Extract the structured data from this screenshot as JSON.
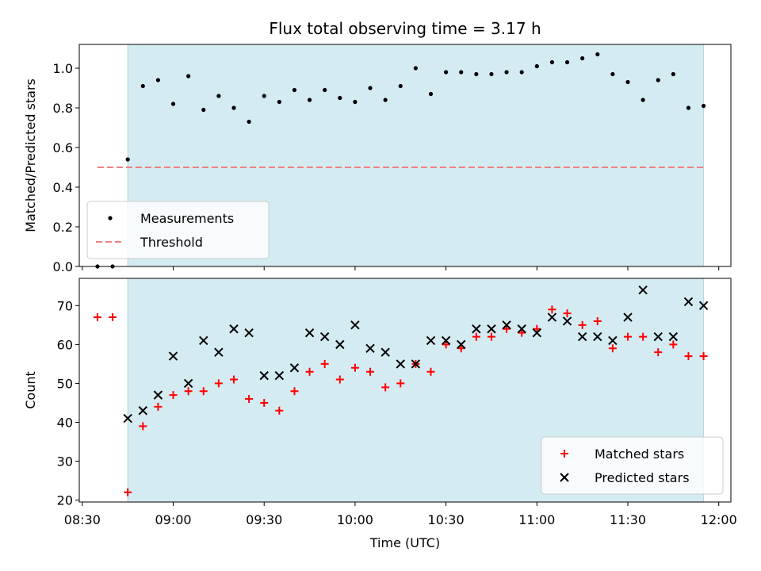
{
  "chart_data": {
    "type": "scatter",
    "title": "Flux total observing time = 3.17 h",
    "xlabel": "Time (UTC)",
    "x_tick_labels": [
      "08:30",
      "09:00",
      "09:30",
      "10:00",
      "10:30",
      "11:00",
      "11:30",
      "12:00"
    ],
    "x_ticks_min": [
      510,
      540,
      570,
      600,
      630,
      660,
      690,
      720
    ],
    "xlim_min": [
      509,
      724
    ],
    "time_unit": "minutes since 00:00 UTC",
    "observing_span_min": [
      525,
      715
    ],
    "times_min": [
      515,
      520,
      525,
      530,
      535,
      540,
      545,
      550,
      555,
      560,
      565,
      570,
      575,
      580,
      585,
      590,
      595,
      600,
      605,
      610,
      615,
      620,
      625,
      630,
      635,
      640,
      645,
      650,
      655,
      660,
      665,
      670,
      675,
      680,
      685,
      690,
      695,
      700,
      705,
      710,
      715
    ],
    "panels": [
      {
        "id": "ratio",
        "ylabel": "Matched/Predicted stars",
        "ylim": [
          0,
          1.12
        ],
        "y_ticks": [
          "0.0",
          "0.2",
          "0.4",
          "0.6",
          "0.8",
          "1.0"
        ],
        "y_tick_values": [
          0,
          0.2,
          0.4,
          0.6,
          0.8,
          1.0
        ],
        "series": [
          {
            "name": "Measurements",
            "marker": "dot",
            "color": "#000000",
            "values": [
              0.0,
              0.0,
              0.54,
              0.91,
              0.94,
              0.82,
              0.96,
              0.79,
              0.86,
              0.8,
              0.73,
              0.86,
              0.83,
              0.89,
              0.84,
              0.89,
              0.85,
              0.83,
              0.9,
              0.84,
              0.91,
              1.0,
              0.87,
              0.98,
              0.98,
              0.97,
              0.97,
              0.98,
              0.98,
              1.01,
              1.03,
              1.03,
              1.05,
              1.07,
              0.97,
              0.93,
              0.84,
              0.94,
              0.97,
              0.8,
              0.81
            ]
          }
        ],
        "threshold": {
          "name": "Threshold",
          "value": 0.5,
          "x_range_min": [
            515,
            715
          ],
          "color": "#f08080"
        },
        "legend": "lower-left"
      },
      {
        "id": "count",
        "ylabel": "Count",
        "ylim": [
          19.5,
          77
        ],
        "y_ticks": [
          "20",
          "30",
          "40",
          "50",
          "60",
          "70"
        ],
        "y_tick_values": [
          20,
          30,
          40,
          50,
          60,
          70
        ],
        "series": [
          {
            "name": "Matched stars",
            "marker": "plus",
            "color": "#ff0000",
            "values": [
              67,
              67,
              22,
              39,
              44,
              47,
              48,
              48,
              50,
              51,
              46,
              45,
              43,
              48,
              53,
              55,
              51,
              54,
              53,
              49,
              50,
              55,
              53,
              60,
              59,
              62,
              62,
              64,
              63,
              64,
              69,
              68,
              65,
              66,
              59,
              62,
              62,
              58,
              60,
              57,
              57
            ]
          },
          {
            "name": "Predicted stars",
            "marker": "x",
            "color": "#000000",
            "values": [
              null,
              null,
              41,
              43,
              47,
              57,
              50,
              61,
              58,
              64,
              63,
              52,
              52,
              54,
              63,
              62,
              60,
              65,
              59,
              58,
              55,
              55,
              61,
              61,
              60,
              64,
              64,
              65,
              64,
              63,
              67,
              66,
              62,
              62,
              61,
              67,
              74,
              62,
              62,
              71,
              70
            ]
          }
        ],
        "legend": "lower-right"
      }
    ],
    "shading_color": "#add8e6"
  }
}
